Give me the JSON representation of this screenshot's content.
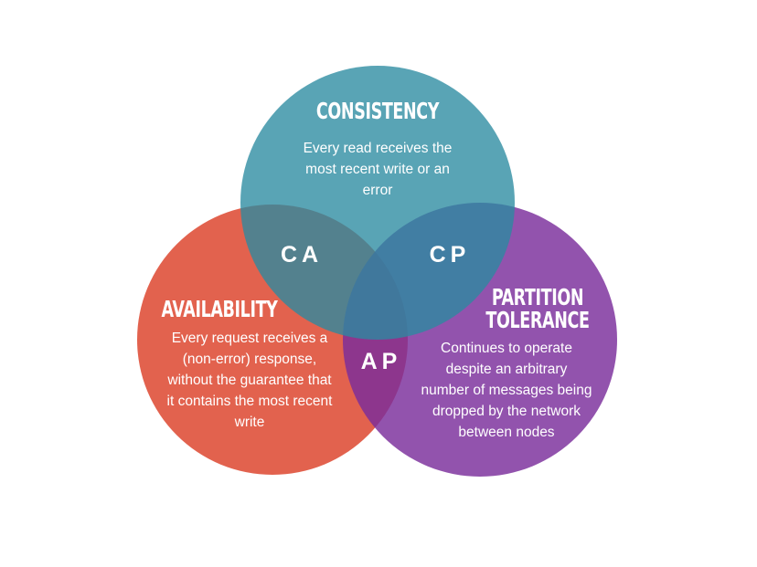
{
  "colors": {
    "consistency": "#2a8aa0",
    "availability": "#e05a45",
    "partition": "#7a2d9b",
    "background": "#ffffff",
    "text": "#ffffff"
  },
  "consistency": {
    "title": "CONSISTENCY",
    "description_lines": [
      "Every read receives the",
      "most recent write or an",
      "error"
    ]
  },
  "availability": {
    "title": "AVAILABILITY",
    "description_lines": [
      "Every request receives a",
      "(non-error) response,",
      "without the guarantee that",
      "it contains the most recent",
      "write"
    ]
  },
  "partition": {
    "title_lines": [
      "PARTITION",
      "TOLERANCE"
    ],
    "description_lines": [
      "Continues to operate",
      "despite an arbitrary",
      "number of messages being",
      "dropped  by the network",
      "between nodes"
    ]
  },
  "overlaps": {
    "ca": "CA",
    "cp": "CP",
    "ap": "AP"
  }
}
